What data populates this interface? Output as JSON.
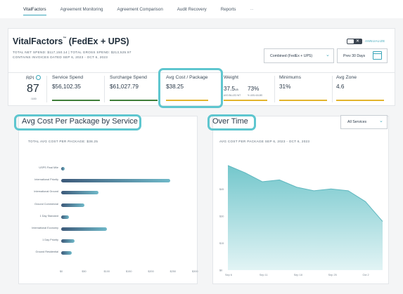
{
  "nav": {
    "items": [
      "VitalFactors",
      "Agreement Monitoring",
      "Agreement Comparison",
      "Audit Recovery",
      "Reports"
    ],
    "more": "..."
  },
  "header": {
    "title": "VitalFactors",
    "title_mark": "™",
    "title_suffix": " (FedEx + UPS)",
    "spend_line": "TOTAL NET SPEND: $117,150.14  |  TOTAL GROSS SPEND: $213,525.97",
    "invoice_line": "CONTAINS INVOICES DATED SEP 6, 2023 - OCT 6, 2023",
    "annualize_label": "ANNUALIZE",
    "carrier_select": "Combined (FedEx + UPS)",
    "period_select": "Prev 30 Days"
  },
  "metrics": {
    "rpi": {
      "label": "RPI",
      "value": "87",
      "denominator": "/100"
    },
    "service_spend": {
      "label": "Service Spend",
      "value": "$56,102.35"
    },
    "surcharge_spend": {
      "label": "Surcharge Spend",
      "value": "$61,027.79"
    },
    "avg_cost": {
      "label": "Avg Cost / Package",
      "value": "$38.25"
    },
    "weight": {
      "label": "Weight",
      "value1": "37.5",
      "unit1": "LB",
      "sub1": "AVG BILLED WT",
      "value2": "73%",
      "sub2": "% LBS>10LBS"
    },
    "minimums": {
      "label": "Minimums",
      "value": "31%"
    },
    "avg_zone": {
      "label": "Avg Zone",
      "value": "4.6"
    }
  },
  "colors": {
    "accent": "#3aa6b9",
    "highlight": "#5ec6cf",
    "bar_service": "#3f7f3a",
    "bar_surcharge": "#3f7f3a",
    "bar_avgcost": "#e2b52e",
    "bar_weight": "#e2b52e",
    "bar_minimums": "#e2b52e",
    "bar_zone": "#e2b52e"
  },
  "bar_panel": {
    "heading": "Avg Cost Per Package by Service",
    "subtitle": "TOTAL AVG COST PER PACKAGE: $38.25"
  },
  "area_panel": {
    "heading": "Over Time",
    "subtitle": "AVG COST PER PACKAGE SEP 6, 2023 - OCT 6, 2023",
    "filter": "All Services"
  },
  "chart_data": [
    {
      "type": "bar",
      "orientation": "horizontal",
      "title": "TOTAL AVG COST PER PACKAGE: $38.25",
      "categories": [
        "USPS Final Mile",
        "International Priority",
        "International Ground",
        "Ground Commercial",
        "1 Day Standard",
        "International Economy",
        "1 Day Priority",
        "Ground Residential"
      ],
      "values": [
        8,
        248,
        85,
        53,
        18,
        104,
        30,
        24
      ],
      "xticks": [
        "$0",
        "$50",
        "$100",
        "$150",
        "$200",
        "$250",
        "$300"
      ],
      "xlim": [
        0,
        300
      ],
      "grid": false
    },
    {
      "type": "area",
      "title": "AVG COST PER PACKAGE SEP 6, 2023 - OCT 6, 2023",
      "x": [
        "Sep 6",
        "Sep 8",
        "Sep 11",
        "Sep 14",
        "Sep 18",
        "Sep 21",
        "Sep 25",
        "Sep 28",
        "Oct 2",
        "Oct 6"
      ],
      "values": [
        58,
        54,
        49,
        50,
        46,
        44,
        45,
        44,
        38,
        27
      ],
      "yticks": [
        "$0",
        "$15",
        "$30",
        "$45"
      ],
      "ylim": [
        0,
        63
      ],
      "xticks": [
        "Sep 6",
        "Sep 11",
        "Sep 18",
        "Sep 25",
        "Oct 2"
      ],
      "grid": false
    }
  ]
}
